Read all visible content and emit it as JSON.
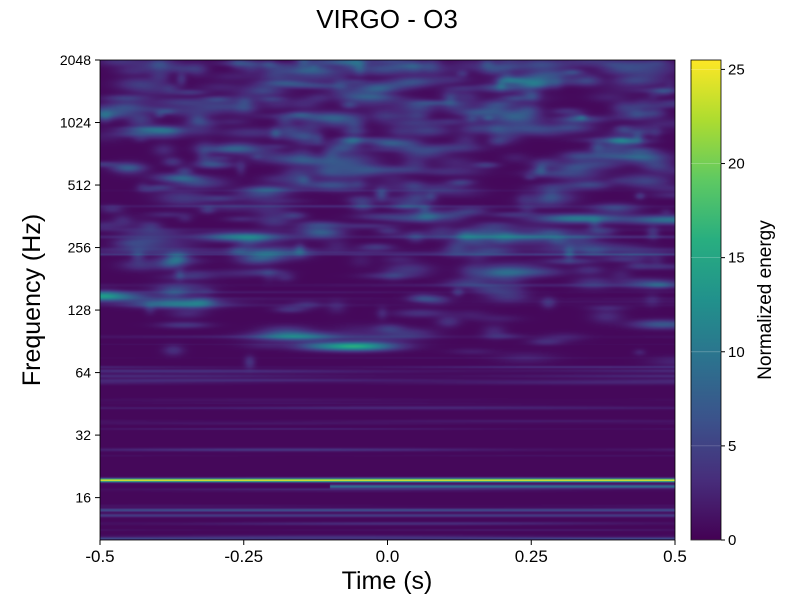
{
  "chart_data": {
    "type": "heatmap",
    "title": "VIRGO - O3",
    "xlabel": "Time (s)",
    "ylabel": "Frequency (Hz)",
    "xlim": [
      -0.5,
      0.5
    ],
    "ylim": [
      10,
      2048
    ],
    "yscale": "log2",
    "x_ticks": [
      -0.5,
      -0.25,
      0.0,
      0.25,
      0.5
    ],
    "x_tick_labels": [
      "-0.5",
      "-0.25",
      "0.0",
      "0.25",
      "0.5"
    ],
    "y_ticks": [
      16,
      32,
      64,
      128,
      256,
      512,
      1024,
      2048
    ],
    "y_tick_labels": [
      "16",
      "32",
      "64",
      "128",
      "256",
      "512",
      "1024",
      "2048"
    ],
    "colormap": "viridis",
    "colorbar": {
      "label": "Normalized energy",
      "range": [
        0,
        25.5
      ],
      "ticks": [
        0,
        5,
        10,
        15,
        20,
        25
      ],
      "tick_labels": [
        "0",
        "5",
        "10",
        "15",
        "20",
        "25"
      ]
    },
    "features": [
      {
        "kind": "horizontal_line",
        "freq_hz": 19.5,
        "energy": 25,
        "t_start": -0.5,
        "t_end": 0.5
      },
      {
        "kind": "horizontal_line",
        "freq_hz": 18.2,
        "energy": 9,
        "t_start": -0.1,
        "t_end": 0.5
      },
      {
        "kind": "horizontal_line",
        "freq_hz": 14.0,
        "energy": 5,
        "t_start": -0.5,
        "t_end": 0.5
      },
      {
        "kind": "horizontal_line",
        "freq_hz": 13.2,
        "energy": 4,
        "t_start": -0.5,
        "t_end": 0.5
      },
      {
        "kind": "blob",
        "t": -0.06,
        "freq_hz": 86,
        "energy": 15
      },
      {
        "kind": "blob",
        "t": -0.16,
        "freq_hz": 96,
        "energy": 9
      },
      {
        "kind": "blob",
        "t": -0.5,
        "freq_hz": 150,
        "energy": 12
      },
      {
        "kind": "blob",
        "t": -0.37,
        "freq_hz": 138,
        "energy": 9
      },
      {
        "kind": "blob",
        "t": 0.33,
        "freq_hz": 355,
        "energy": 10
      },
      {
        "kind": "blob",
        "t": 0.49,
        "freq_hz": 350,
        "energy": 9
      },
      {
        "kind": "blob",
        "t": -0.25,
        "freq_hz": 290,
        "energy": 9
      },
      {
        "kind": "blob",
        "t": 0.2,
        "freq_hz": 290,
        "energy": 6
      }
    ]
  }
}
